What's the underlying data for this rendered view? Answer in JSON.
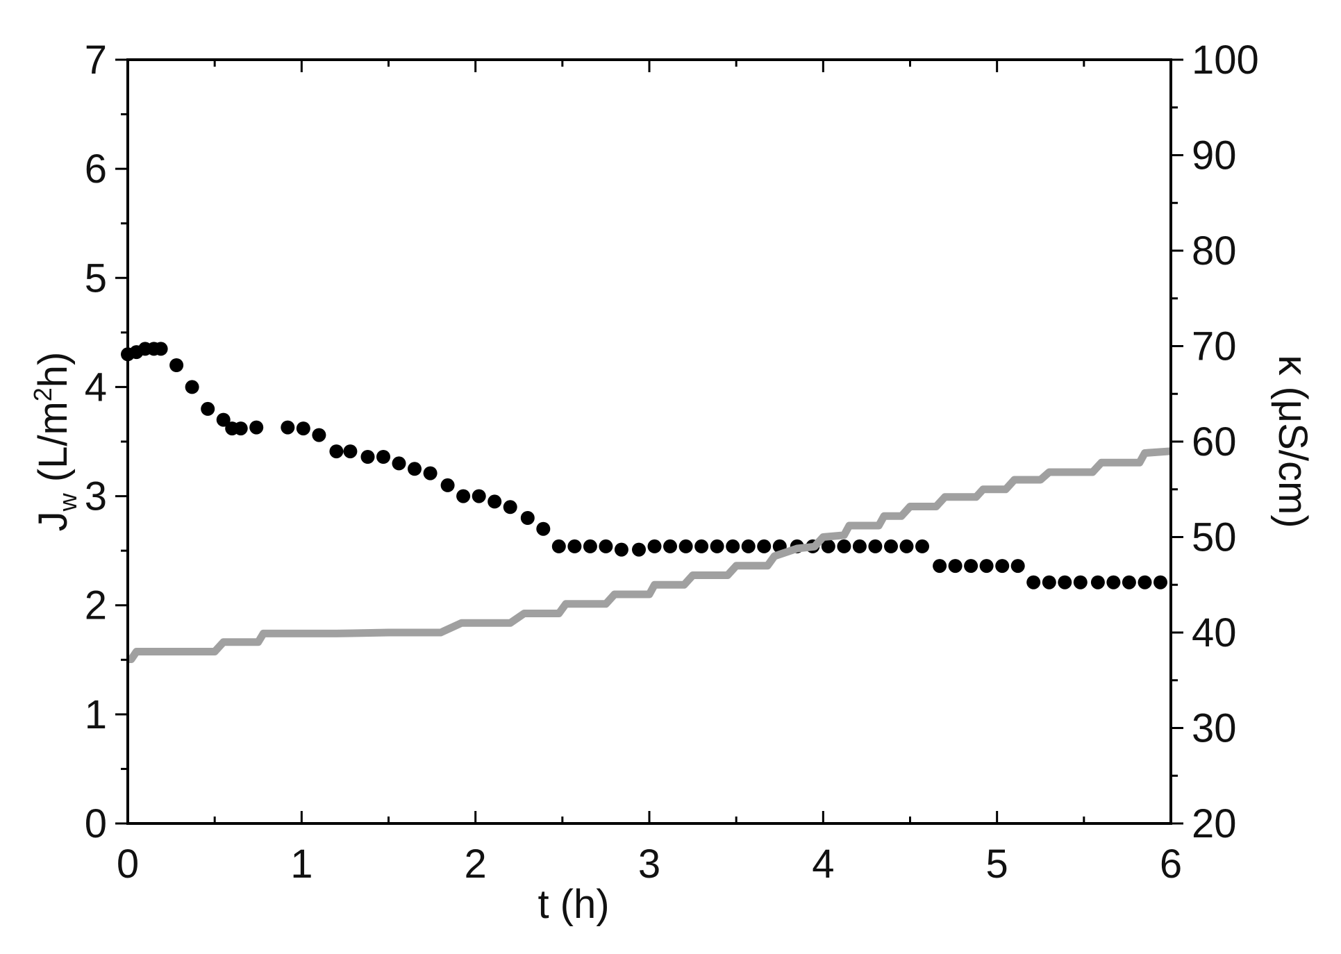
{
  "chart_data": {
    "type": "scatter",
    "xlabel": "t (h)",
    "ylabel_left": {
      "main": "J",
      "sub": "w",
      "pre": " (L/m",
      "sup": "2",
      "post": "h)"
    },
    "ylabel_right": "κ (μS/cm)",
    "xlim": [
      0,
      6
    ],
    "ylim_left": [
      0,
      7
    ],
    "ylim_right": [
      20,
      100
    ],
    "x_ticks": [
      "0",
      "1",
      "2",
      "3",
      "4",
      "5",
      "6"
    ],
    "y_left_ticks": [
      "0",
      "1",
      "2",
      "3",
      "4",
      "5",
      "6",
      "7"
    ],
    "y_right_ticks": [
      "20",
      "30",
      "40",
      "50",
      "60",
      "70",
      "80",
      "90",
      "100"
    ],
    "grid": false,
    "legend": "none",
    "series": [
      {
        "axis": "left",
        "style": "points",
        "color": "#000000",
        "points": [
          [
            0.0,
            4.3
          ],
          [
            0.05,
            4.32
          ],
          [
            0.1,
            4.35
          ],
          [
            0.15,
            4.35
          ],
          [
            0.19,
            4.35
          ],
          [
            0.28,
            4.2
          ],
          [
            0.37,
            4.0
          ],
          [
            0.46,
            3.8
          ],
          [
            0.55,
            3.7
          ],
          [
            0.6,
            3.62
          ],
          [
            0.65,
            3.62
          ],
          [
            0.74,
            3.63
          ],
          [
            0.92,
            3.63
          ],
          [
            1.01,
            3.62
          ],
          [
            1.1,
            3.56
          ],
          [
            1.2,
            3.41
          ],
          [
            1.28,
            3.41
          ],
          [
            1.38,
            3.36
          ],
          [
            1.47,
            3.36
          ],
          [
            1.56,
            3.3
          ],
          [
            1.65,
            3.25
          ],
          [
            1.74,
            3.21
          ],
          [
            1.84,
            3.1
          ],
          [
            1.93,
            3.0
          ],
          [
            2.02,
            3.0
          ],
          [
            2.11,
            2.95
          ],
          [
            2.2,
            2.9
          ],
          [
            2.3,
            2.8
          ],
          [
            2.39,
            2.7
          ],
          [
            2.48,
            2.54
          ],
          [
            2.57,
            2.54
          ],
          [
            2.66,
            2.54
          ],
          [
            2.75,
            2.54
          ],
          [
            2.84,
            2.51
          ],
          [
            2.94,
            2.51
          ],
          [
            3.03,
            2.54
          ],
          [
            3.12,
            2.54
          ],
          [
            3.21,
            2.54
          ],
          [
            3.3,
            2.54
          ],
          [
            3.39,
            2.54
          ],
          [
            3.48,
            2.54
          ],
          [
            3.57,
            2.54
          ],
          [
            3.66,
            2.54
          ],
          [
            3.75,
            2.54
          ],
          [
            3.85,
            2.54
          ],
          [
            3.94,
            2.54
          ],
          [
            4.03,
            2.54
          ],
          [
            4.12,
            2.54
          ],
          [
            4.21,
            2.54
          ],
          [
            4.3,
            2.54
          ],
          [
            4.39,
            2.54
          ],
          [
            4.48,
            2.54
          ],
          [
            4.57,
            2.54
          ],
          [
            4.67,
            2.36
          ],
          [
            4.76,
            2.36
          ],
          [
            4.85,
            2.36
          ],
          [
            4.94,
            2.36
          ],
          [
            5.03,
            2.36
          ],
          [
            5.12,
            2.36
          ],
          [
            5.21,
            2.21
          ],
          [
            5.3,
            2.21
          ],
          [
            5.39,
            2.21
          ],
          [
            5.48,
            2.21
          ],
          [
            5.58,
            2.21
          ],
          [
            5.67,
            2.21
          ],
          [
            5.76,
            2.21
          ],
          [
            5.85,
            2.21
          ],
          [
            5.94,
            2.21
          ]
        ]
      },
      {
        "axis": "right",
        "style": "line",
        "color": "#a0a0a0",
        "points": [
          [
            0.0,
            37.2
          ],
          [
            0.02,
            37.2
          ],
          [
            0.05,
            38.0
          ],
          [
            0.5,
            38.0
          ],
          [
            0.55,
            39.0
          ],
          [
            0.75,
            39.0
          ],
          [
            0.78,
            39.9
          ],
          [
            1.1,
            39.9
          ],
          [
            1.2,
            39.9
          ],
          [
            1.5,
            40.0
          ],
          [
            1.8,
            40.0
          ],
          [
            1.92,
            41.0
          ],
          [
            2.2,
            41.0
          ],
          [
            2.28,
            42.0
          ],
          [
            2.48,
            42.0
          ],
          [
            2.52,
            43.0
          ],
          [
            2.75,
            43.0
          ],
          [
            2.8,
            44.0
          ],
          [
            3.0,
            44.0
          ],
          [
            3.03,
            45.0
          ],
          [
            3.2,
            45.0
          ],
          [
            3.25,
            46.0
          ],
          [
            3.45,
            46.0
          ],
          [
            3.5,
            47.0
          ],
          [
            3.68,
            47.0
          ],
          [
            3.72,
            48.0
          ],
          [
            3.85,
            48.8
          ],
          [
            3.95,
            49.0
          ],
          [
            4.0,
            50.0
          ],
          [
            4.12,
            50.2
          ],
          [
            4.15,
            51.2
          ],
          [
            4.32,
            51.2
          ],
          [
            4.35,
            52.2
          ],
          [
            4.45,
            52.2
          ],
          [
            4.5,
            53.2
          ],
          [
            4.65,
            53.2
          ],
          [
            4.7,
            54.2
          ],
          [
            4.88,
            54.2
          ],
          [
            4.92,
            55.0
          ],
          [
            5.05,
            55.0
          ],
          [
            5.1,
            56.0
          ],
          [
            5.25,
            56.0
          ],
          [
            5.3,
            56.8
          ],
          [
            5.55,
            56.8
          ],
          [
            5.6,
            57.8
          ],
          [
            5.82,
            57.8
          ],
          [
            5.85,
            58.8
          ],
          [
            6.0,
            59.0
          ]
        ]
      }
    ]
  }
}
